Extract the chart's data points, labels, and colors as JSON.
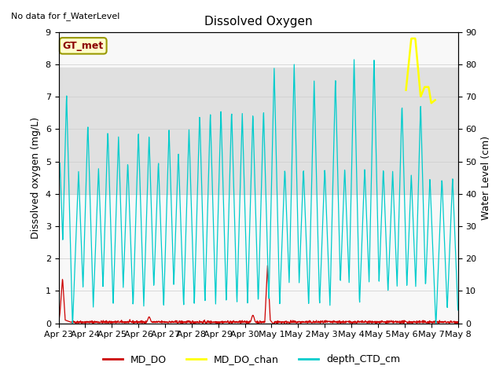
{
  "title": "Dissolved Oxygen",
  "ylabel_left": "Dissolved oxygen (mg/L)",
  "ylabel_right": "Water Level (cm)",
  "no_data_text": "No data for f_WaterLevel",
  "gt_label": "GT_met",
  "ylim_left": [
    0,
    9.0
  ],
  "ylim_right": [
    0,
    90
  ],
  "yticks_left": [
    0.0,
    1.0,
    2.0,
    3.0,
    4.0,
    5.0,
    6.0,
    7.0,
    8.0,
    9.0
  ],
  "yticks_right": [
    0,
    10,
    20,
    30,
    40,
    50,
    60,
    70,
    80,
    90
  ],
  "shade_band": [
    4.0,
    7.9
  ],
  "shade_color": "#e0e0e0",
  "bg_color": "#f8f8f8",
  "color_MD_DO": "#cc0000",
  "color_MD_DO_chan": "#ffff00",
  "color_depth_CTD_cm": "#00cccc",
  "legend_labels": [
    "MD_DO",
    "MD_DO_chan",
    "depth_CTD_cm"
  ],
  "xtick_labels": [
    "Apr 23",
    "Apr 24",
    "Apr 25",
    "Apr 26",
    "Apr 27",
    "Apr 28",
    "Apr 29",
    "Apr 30",
    "May 1",
    "May 2",
    "May 3",
    "May 4",
    "May 5",
    "May 6",
    "May 7",
    "May 8"
  ]
}
